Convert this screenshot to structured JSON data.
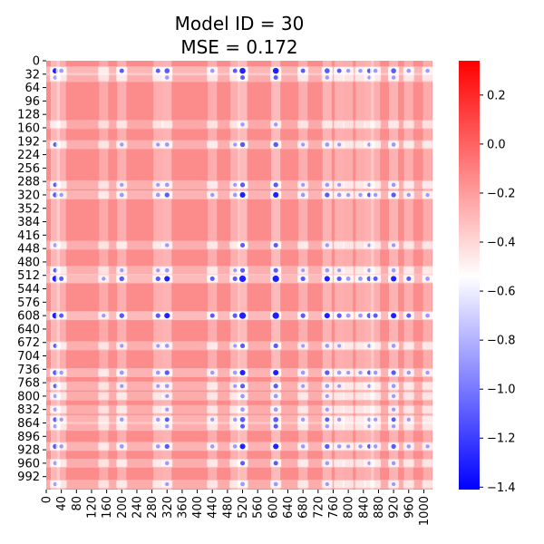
{
  "chart_data": {
    "type": "heatmap",
    "title": [
      "Model ID = 30",
      "MSE = 0.172"
    ],
    "xlabel": "",
    "ylabel": "",
    "x_ticks": [
      "0",
      "40",
      "80",
      "120",
      "160",
      "200",
      "240",
      "280",
      "320",
      "360",
      "400",
      "440",
      "480",
      "520",
      "560",
      "600",
      "640",
      "680",
      "720",
      "760",
      "800",
      "840",
      "880",
      "920",
      "960",
      "1000"
    ],
    "x_range": [
      0,
      1023
    ],
    "y_ticks": [
      "0",
      "32",
      "64",
      "96",
      "128",
      "160",
      "192",
      "224",
      "256",
      "288",
      "320",
      "352",
      "384",
      "416",
      "448",
      "480",
      "512",
      "544",
      "576",
      "608",
      "640",
      "672",
      "704",
      "736",
      "768",
      "800",
      "832",
      "864",
      "896",
      "928",
      "960",
      "992"
    ],
    "y_range": [
      0,
      1023
    ],
    "colorbar": {
      "min": -1.41,
      "max": 0.34,
      "center": -0.54,
      "ticks": [
        {
          "value": 0.2,
          "label": "0.2"
        },
        {
          "value": 0.0,
          "label": "0.0"
        },
        {
          "value": -0.2,
          "label": "−0.2"
        },
        {
          "value": -0.4,
          "label": "−0.4"
        },
        {
          "value": -0.6,
          "label": "−0.6"
        },
        {
          "value": -0.8,
          "label": "−0.8"
        },
        {
          "value": -1.0,
          "label": "−1.0"
        },
        {
          "value": -1.2,
          "label": "−1.2"
        },
        {
          "value": -1.4,
          "label": "−1.4"
        }
      ],
      "colors": [
        "#0000ff",
        "#ffffff",
        "#ff0000"
      ]
    },
    "band_index": [
      24,
      40,
      152,
      200,
      296,
      320,
      440,
      500,
      520,
      608,
      680,
      744,
      776,
      800,
      832,
      856,
      872,
      920,
      960,
      1010
    ],
    "band_strength": [
      0.85,
      0.5,
      0.35,
      0.6,
      0.55,
      0.75,
      0.5,
      0.55,
      1.0,
      1.0,
      0.55,
      0.75,
      0.55,
      0.45,
      0.45,
      0.65,
      0.5,
      0.75,
      0.5,
      0.45
    ]
  }
}
